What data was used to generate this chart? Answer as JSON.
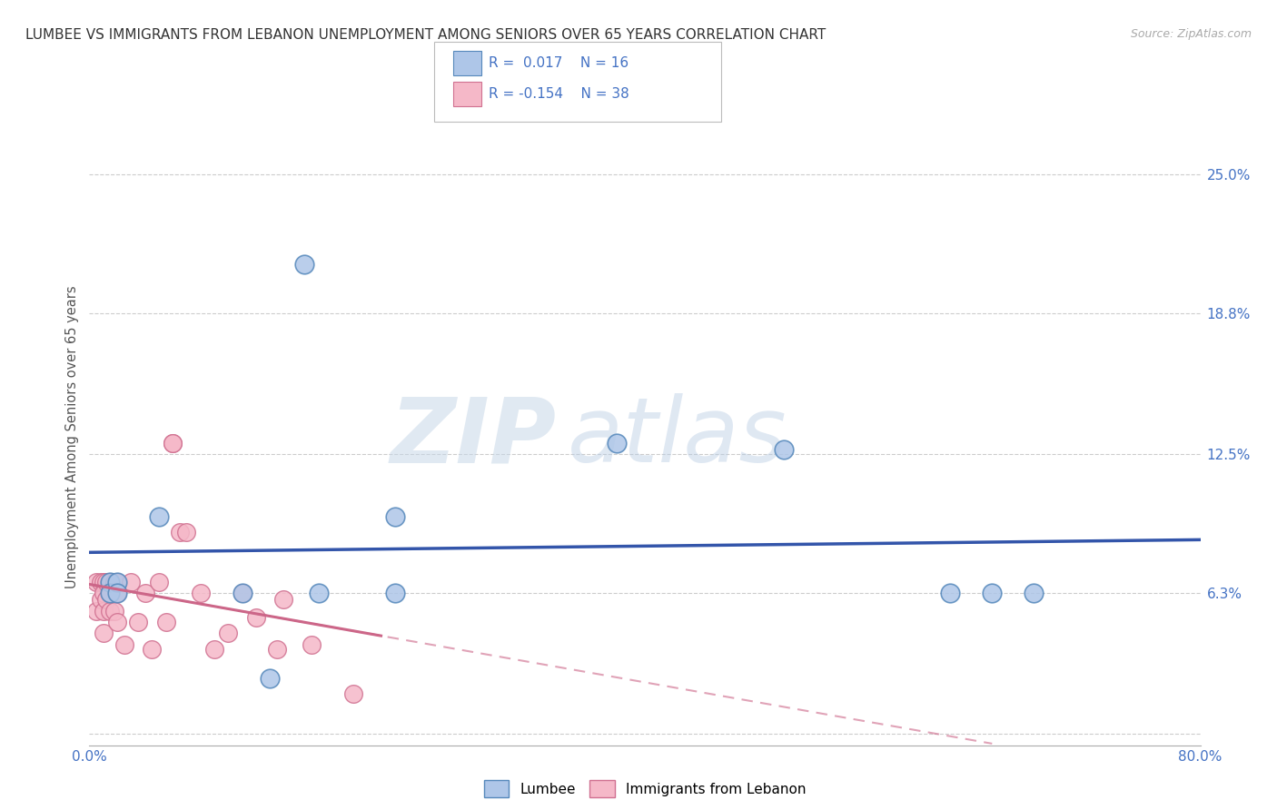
{
  "title": "LUMBEE VS IMMIGRANTS FROM LEBANON UNEMPLOYMENT AMONG SENIORS OVER 65 YEARS CORRELATION CHART",
  "source": "Source: ZipAtlas.com",
  "ylabel": "Unemployment Among Seniors over 65 years",
  "xlim": [
    0.0,
    0.8
  ],
  "ylim": [
    -0.005,
    0.27
  ],
  "ytick_positions": [
    0.0,
    0.063,
    0.125,
    0.188,
    0.25
  ],
  "ytick_labels": [
    "",
    "6.3%",
    "12.5%",
    "18.8%",
    "25.0%"
  ],
  "watermark_zip": "ZIP",
  "watermark_atlas": "atlas",
  "lumbee_color": "#aec6e8",
  "lumbee_edge": "#5588bb",
  "lebanon_color": "#f5b8c8",
  "lebanon_edge": "#d07090",
  "lumbee_R": 0.017,
  "lumbee_N": 16,
  "lebanon_R": -0.154,
  "lebanon_N": 38,
  "lumbee_x": [
    0.015,
    0.015,
    0.02,
    0.02,
    0.05,
    0.155,
    0.165,
    0.22,
    0.22,
    0.38,
    0.5,
    0.62,
    0.65,
    0.68,
    0.11,
    0.13
  ],
  "lumbee_y": [
    0.068,
    0.063,
    0.068,
    0.063,
    0.097,
    0.21,
    0.063,
    0.097,
    0.063,
    0.13,
    0.127,
    0.063,
    0.063,
    0.063,
    0.063,
    0.025
  ],
  "lebanon_x": [
    0.005,
    0.005,
    0.008,
    0.008,
    0.01,
    0.01,
    0.01,
    0.01,
    0.012,
    0.012,
    0.015,
    0.015,
    0.015,
    0.018,
    0.018,
    0.02,
    0.02,
    0.02,
    0.025,
    0.03,
    0.035,
    0.04,
    0.045,
    0.05,
    0.055,
    0.06,
    0.06,
    0.065,
    0.07,
    0.08,
    0.09,
    0.1,
    0.11,
    0.12,
    0.135,
    0.14,
    0.16,
    0.19
  ],
  "lebanon_y": [
    0.068,
    0.055,
    0.068,
    0.06,
    0.068,
    0.063,
    0.055,
    0.045,
    0.068,
    0.06,
    0.068,
    0.063,
    0.055,
    0.068,
    0.055,
    0.068,
    0.063,
    0.05,
    0.04,
    0.068,
    0.05,
    0.063,
    0.038,
    0.068,
    0.05,
    0.13,
    0.13,
    0.09,
    0.09,
    0.063,
    0.038,
    0.045,
    0.063,
    0.052,
    0.038,
    0.06,
    0.04,
    0.018
  ],
  "tick_label_color": "#4472c4",
  "grid_color": "#cccccc",
  "line_color_blue": "#3355aa",
  "line_color_pink": "#cc6688",
  "background_color": "#ffffff",
  "title_fontsize": 11,
  "legend_label_color": "#4472c4"
}
